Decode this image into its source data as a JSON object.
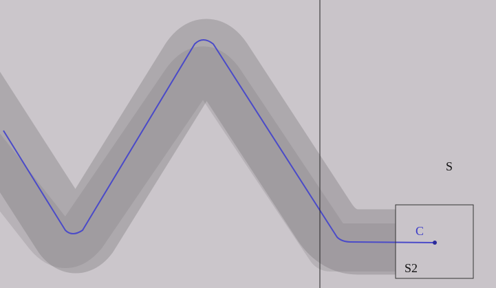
{
  "labels": {
    "s": "S",
    "c": "C",
    "s2": "S2"
  }
}
